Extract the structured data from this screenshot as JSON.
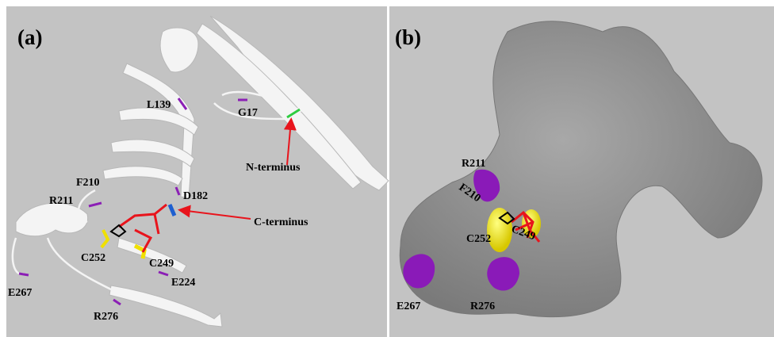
{
  "panels": [
    {
      "label": "(a)",
      "annotations": [
        "L139",
        "G17",
        "N-terminus",
        "C-terminus",
        "F210",
        "R211",
        "D182",
        "C249",
        "C252",
        "E224",
        "E267",
        "R276"
      ]
    },
    {
      "label": "(b)",
      "annotations": [
        "R211",
        "F210",
        "C252",
        "C249",
        "E267",
        "R276"
      ]
    }
  ]
}
